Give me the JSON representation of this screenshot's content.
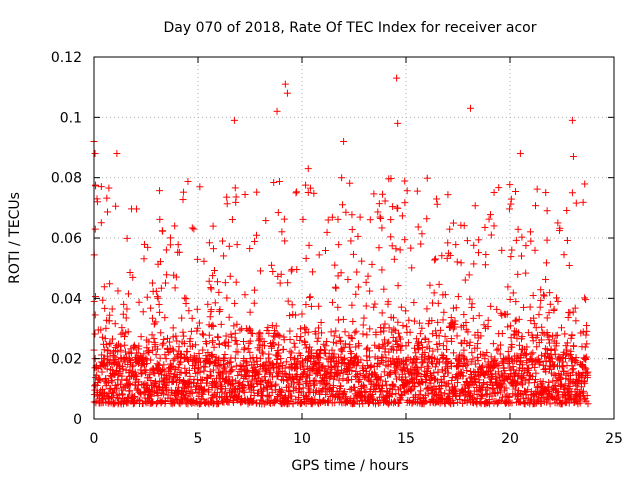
{
  "chart_data": {
    "type": "scatter",
    "title": "Day 070 of 2018, Rate Of TEC Index for receiver acor",
    "xlabel": "GPS time / hours",
    "ylabel": "ROTI / TECUs",
    "xlim": [
      0,
      25
    ],
    "ylim": [
      0,
      0.12
    ],
    "x_ticks": [
      0,
      5,
      10,
      15,
      20,
      25
    ],
    "x_tick_labels": [
      "0",
      "5",
      "10",
      "15",
      "20",
      "25"
    ],
    "y_ticks": [
      0,
      0.02,
      0.04,
      0.06,
      0.08,
      0.1,
      0.12
    ],
    "y_tick_labels": [
      "0",
      "0.02",
      "0.04",
      "0.06",
      "0.08",
      "0.1",
      "0.12"
    ],
    "grid": true,
    "marker": "plus",
    "color": "#ff0000",
    "data_span_hours": [
      0,
      23.75
    ],
    "baseline_range": [
      0.005,
      0.02
    ],
    "notable_points": [
      {
        "x": 0.0,
        "y": 0.092
      },
      {
        "x": 0.05,
        "y": 0.088
      },
      {
        "x": 1.1,
        "y": 0.088
      },
      {
        "x": 6.75,
        "y": 0.099
      },
      {
        "x": 8.8,
        "y": 0.102
      },
      {
        "x": 9.2,
        "y": 0.111
      },
      {
        "x": 9.3,
        "y": 0.108
      },
      {
        "x": 10.3,
        "y": 0.083
      },
      {
        "x": 12.0,
        "y": 0.092
      },
      {
        "x": 14.55,
        "y": 0.113
      },
      {
        "x": 14.6,
        "y": 0.098
      },
      {
        "x": 18.1,
        "y": 0.103
      },
      {
        "x": 20.5,
        "y": 0.088
      },
      {
        "x": 23.0,
        "y": 0.099
      },
      {
        "x": 23.05,
        "y": 0.087
      },
      {
        "x": 23.0,
        "y": 0.075
      },
      {
        "x": 22.3,
        "y": 0.065
      }
    ]
  }
}
